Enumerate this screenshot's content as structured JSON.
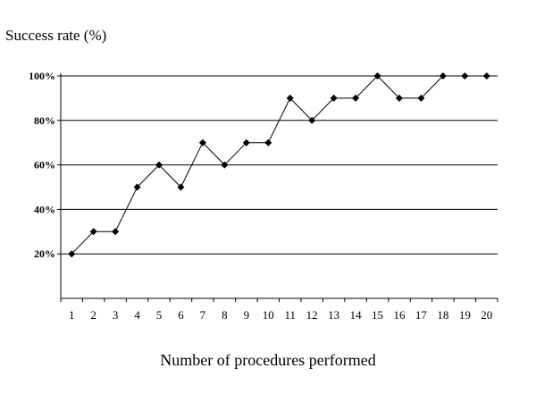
{
  "chart_data": {
    "type": "line",
    "ylabel": "Success rate (%)",
    "xlabel": "Number of procedures performed",
    "x": [
      1,
      2,
      3,
      4,
      5,
      6,
      7,
      8,
      9,
      10,
      11,
      12,
      13,
      14,
      15,
      16,
      17,
      18,
      19,
      20
    ],
    "values": [
      20,
      30,
      30,
      50,
      60,
      50,
      70,
      60,
      70,
      70,
      90,
      80,
      90,
      90,
      100,
      90,
      90,
      100,
      100,
      100
    ],
    "ylim": [
      0,
      100
    ],
    "yticks": [
      20,
      40,
      60,
      80,
      100
    ],
    "ytick_labels": [
      "20%",
      "40%",
      "60%",
      "80%",
      "100%"
    ],
    "grid": true,
    "marker": "diamond",
    "color": "#000000"
  }
}
